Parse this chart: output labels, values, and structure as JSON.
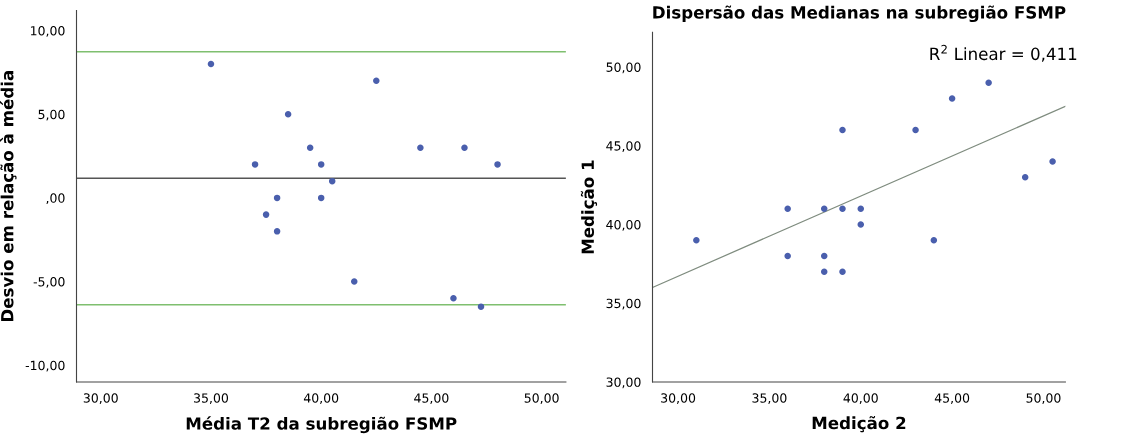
{
  "chart_data": [
    {
      "type": "scatter",
      "xlabel": "Média T2 da subregião FSMP",
      "ylabel": "Desvio em relação à média",
      "x": [
        35,
        37,
        38.5,
        37.5,
        38,
        38,
        39.5,
        40,
        40,
        40.5,
        41.5,
        42.5,
        44.5,
        46.5,
        46,
        47.25,
        48
      ],
      "series": [
        {
          "color": "#4a5fad",
          "values": [
            8,
            2,
            5,
            -1,
            0,
            -2,
            3,
            2,
            0,
            1,
            -5,
            7,
            3,
            3,
            -6,
            -6.5,
            2
          ]
        }
      ],
      "marker": "circle",
      "grid": false,
      "legend": false,
      "xlim": [
        28.9,
        51.1
      ],
      "ylim": [
        -11.0,
        11.2
      ],
      "xticks": [
        {
          "value": 30,
          "label": "30,00"
        },
        {
          "value": 35,
          "label": "35,00"
        },
        {
          "value": 40,
          "label": "40,00"
        },
        {
          "value": 45,
          "label": "45,00"
        },
        {
          "value": 50,
          "label": "50,00"
        }
      ],
      "yticks": [
        {
          "value": -10,
          "label": "-10,00"
        },
        {
          "value": -5,
          "label": "-5,00"
        },
        {
          "value": 0,
          "label": ",00"
        },
        {
          "value": 5,
          "label": "5,00"
        },
        {
          "value": 10,
          "label": "10,00"
        }
      ],
      "ref_lines": [
        {
          "axis": "y",
          "value": 8.73,
          "color": "#7fbf6f"
        },
        {
          "axis": "y",
          "value": 1.17,
          "color": "#555555"
        },
        {
          "axis": "y",
          "value": -6.39,
          "color": "#7fbf6f"
        }
      ]
    },
    {
      "type": "scatter",
      "title": "Dispersão das Medianas na subregião FSMP",
      "xlabel": "Medição 2",
      "ylabel": "Medição 1",
      "x": [
        31,
        36,
        36,
        38,
        38,
        38,
        39,
        39,
        39,
        40,
        40,
        43,
        44,
        45,
        47,
        49,
        50.5
      ],
      "series": [
        {
          "color": "#4a5fad",
          "values": [
            39,
            41,
            38,
            41,
            38,
            37,
            46,
            41,
            37,
            41,
            40,
            46,
            39,
            48,
            49,
            43,
            44
          ]
        },
        {
          "type": "line",
          "marker": "none",
          "x": [
            28.6,
            51.2
          ],
          "color": "#7f8c7f",
          "values": [
            36.0,
            47.5
          ]
        }
      ],
      "marker": "circle",
      "grid": false,
      "legend": false,
      "annotations": [
        "R$^{2}$ Linear = 0,411"
      ],
      "xlim": [
        28.6,
        51.2
      ],
      "ylim": [
        30.0,
        52.2
      ],
      "xticks": [
        {
          "value": 30,
          "label": "30,00"
        },
        {
          "value": 35,
          "label": "35,00"
        },
        {
          "value": 40,
          "label": "40,00"
        },
        {
          "value": 45,
          "label": "45,00"
        },
        {
          "value": 50,
          "label": "50,00"
        }
      ],
      "yticks": [
        {
          "value": 30,
          "label": "30,00"
        },
        {
          "value": 35,
          "label": "35,00"
        },
        {
          "value": 40,
          "label": "40,00"
        },
        {
          "value": 45,
          "label": "45,00"
        },
        {
          "value": 50,
          "label": "50,00"
        }
      ]
    }
  ]
}
